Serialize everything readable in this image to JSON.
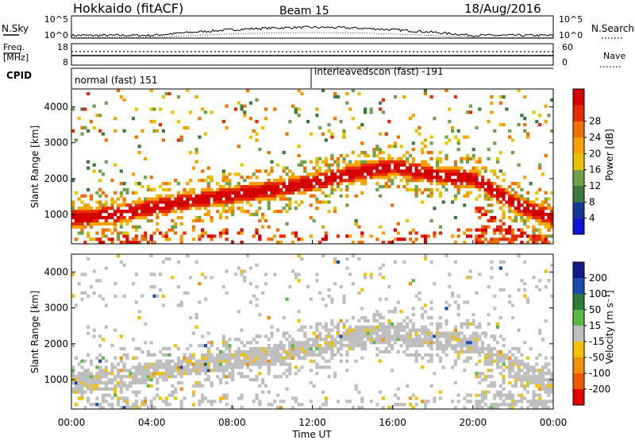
{
  "header": {
    "station": "Hokkaido (fitACF)",
    "beam": "Beam 15",
    "date": "18/Aug/2016"
  },
  "strip": {
    "nsky_label": "N.Sky",
    "nsky_ticks": [
      "10^5",
      "10^0"
    ],
    "nsearch_label": "N.Search",
    "nsearch_ticks": [
      "10^5",
      "10^0"
    ],
    "freq_label_1": "Freq.",
    "freq_label_2": "[MHz]",
    "freq_ticks": [
      "18",
      "8"
    ],
    "nave_label": "Nave",
    "nave_ticks": [
      "60",
      "0"
    ],
    "cpid_label": "CPID",
    "cpid_modes": [
      "normal (fast) 151",
      "interleavedscon (fast) -191"
    ]
  },
  "axes": {
    "ylabel": "Slant Range [km]",
    "y_ticks": [
      "1000",
      "2000",
      "3000",
      "4000"
    ],
    "xlabel": "Time UT",
    "x_ticks": [
      "00:00",
      "04:00",
      "08:00",
      "12:00",
      "16:00",
      "20:00",
      "00:00"
    ]
  },
  "power_bar": {
    "label": "Power [dB]",
    "ticks": [
      "4",
      "8",
      "12",
      "16",
      "20",
      "24",
      "28"
    ],
    "colors": [
      "#0a17d9",
      "#17389a",
      "#3d7a3d",
      "#6fa04a",
      "#e8c300",
      "#f6a100",
      "#f07000",
      "#e62b00",
      "#d40000"
    ]
  },
  "velocity_bar": {
    "label": "Velocity [m s⁻¹]",
    "ticks": [
      "200",
      "100",
      "50",
      "15",
      "-15",
      "-50",
      "-100",
      "-200"
    ],
    "colors": [
      "#101a8a",
      "#1a4bb0",
      "#2c7a3a",
      "#58b848",
      "#bfbfbf",
      "#f2c200",
      "#f29000",
      "#ef5a00",
      "#e20000"
    ]
  },
  "chart_data": [
    {
      "type": "heatmap",
      "title": "Power",
      "xlabel": "Time UT",
      "ylabel": "Slant Range [km]",
      "xlim_hours": [
        0,
        24
      ],
      "ylim": [
        180,
        4500
      ],
      "colorbar": "Power [dB]",
      "band_center_range_km": {
        "x_hours": [
          0,
          2,
          4,
          6,
          8,
          10,
          12,
          14,
          16,
          18,
          20,
          22,
          24
        ],
        "y_km": [
          900,
          1000,
          1200,
          1400,
          1550,
          1700,
          1900,
          2150,
          2350,
          2100,
          2000,
          1300,
          900
        ]
      }
    },
    {
      "type": "heatmap",
      "title": "Velocity",
      "xlabel": "Time UT",
      "ylabel": "Slant Range [km]",
      "xlim_hours": [
        0,
        24
      ],
      "ylim": [
        180,
        4500
      ],
      "colorbar": "Velocity [m s⁻¹]"
    }
  ]
}
